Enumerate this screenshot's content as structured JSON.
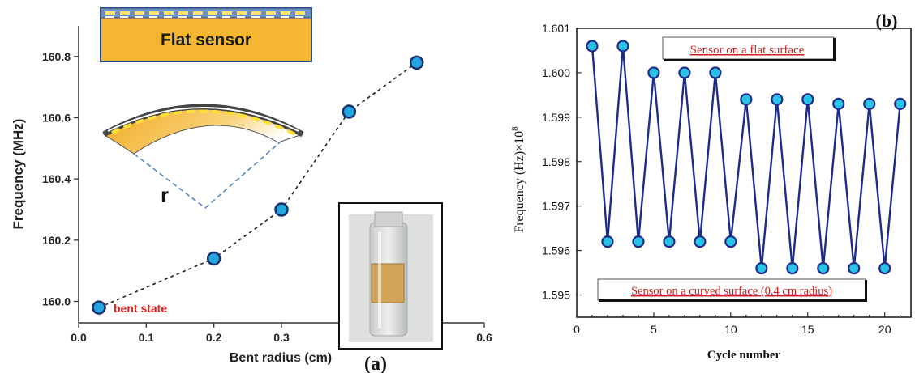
{
  "chart_data": [
    {
      "type": "scatter",
      "panel_label": "(a)",
      "xlabel": "Bent radius (cm)",
      "ylabel": "Frequency (MHz)",
      "xlim": [
        0.0,
        0.6
      ],
      "ylim": [
        159.93,
        160.9
      ],
      "xticks": [
        "0.0",
        "0.1",
        "0.2",
        "0.3",
        "0.4",
        "0.5",
        "0.6"
      ],
      "yticks": [
        "160.0",
        "160.2",
        "160.4",
        "160.6",
        "160.8"
      ],
      "x": [
        0.03,
        0.2,
        0.3,
        0.4,
        0.5
      ],
      "y": [
        159.98,
        160.14,
        160.3,
        160.62,
        160.78
      ],
      "grid": false,
      "annotations": {
        "flat_sensor": "Flat sensor",
        "radius_symbol": "r",
        "bent_state": "bent state"
      },
      "colors": {
        "marker": "#22a7e0",
        "marker_edge": "#1a2f6b",
        "sensor_gold": "#f5b731",
        "bent_note": "#e0201b"
      }
    },
    {
      "type": "line",
      "panel_label": "(b)",
      "xlabel": "Cycle number",
      "ylabel": "Frequency (Hz)×10",
      "ylabel_exponent": "8",
      "xlim": [
        0,
        21.7
      ],
      "ylim": [
        1.5945,
        1.601
      ],
      "xticks": [
        "0",
        "5",
        "10",
        "15",
        "20"
      ],
      "yticks": [
        "1.595",
        "1.596",
        "1.597",
        "1.598",
        "1.599",
        "1.600",
        "1.601"
      ],
      "x": [
        1,
        2,
        3,
        4,
        5,
        6,
        7,
        8,
        9,
        10,
        11,
        12,
        13,
        14,
        15,
        16,
        17,
        18,
        19,
        20,
        21
      ],
      "y": [
        1.6006,
        1.5962,
        1.6006,
        1.5962,
        1.6,
        1.5962,
        1.6,
        1.5962,
        1.6,
        1.5962,
        1.5994,
        1.5956,
        1.5994,
        1.5956,
        1.5994,
        1.5956,
        1.5993,
        1.5956,
        1.5993,
        1.5956,
        1.5993
      ],
      "grid": false,
      "annotations": {
        "flat_label": "Sensor on a flat surface",
        "curved_label": "Sensor on a curved surface (0.4 cm radius)"
      },
      "colors": {
        "line": "#1f2a8a",
        "marker": "#29c3e6",
        "label_text": "#cc2222"
      }
    }
  ]
}
